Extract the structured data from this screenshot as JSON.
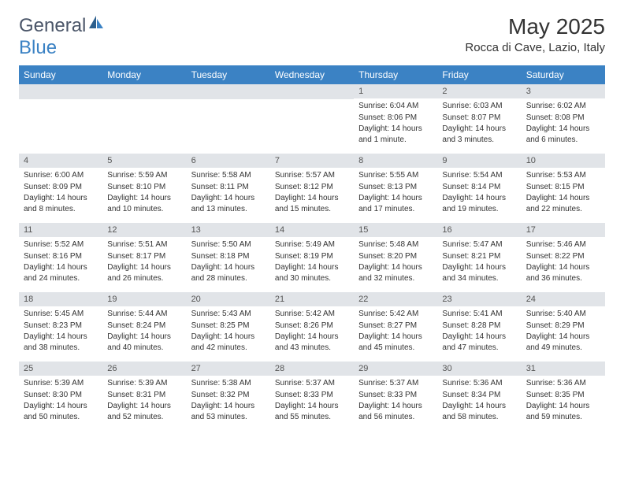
{
  "logo": {
    "text_general": "General",
    "text_blue": "Blue"
  },
  "header": {
    "month_title": "May 2025",
    "location": "Rocca di Cave, Lazio, Italy"
  },
  "calendar": {
    "day_headers": [
      "Sunday",
      "Monday",
      "Tuesday",
      "Wednesday",
      "Thursday",
      "Friday",
      "Saturday"
    ],
    "header_bg_color": "#3b82c4",
    "header_text_color": "#ffffff",
    "day_number_bg_color": "#e1e4e8",
    "weeks": [
      [
        {
          "empty": true
        },
        {
          "empty": true
        },
        {
          "empty": true
        },
        {
          "empty": true
        },
        {
          "day": "1",
          "sunrise": "Sunrise: 6:04 AM",
          "sunset": "Sunset: 8:06 PM",
          "daylight": "Daylight: 14 hours and 1 minute."
        },
        {
          "day": "2",
          "sunrise": "Sunrise: 6:03 AM",
          "sunset": "Sunset: 8:07 PM",
          "daylight": "Daylight: 14 hours and 3 minutes."
        },
        {
          "day": "3",
          "sunrise": "Sunrise: 6:02 AM",
          "sunset": "Sunset: 8:08 PM",
          "daylight": "Daylight: 14 hours and 6 minutes."
        }
      ],
      [
        {
          "day": "4",
          "sunrise": "Sunrise: 6:00 AM",
          "sunset": "Sunset: 8:09 PM",
          "daylight": "Daylight: 14 hours and 8 minutes."
        },
        {
          "day": "5",
          "sunrise": "Sunrise: 5:59 AM",
          "sunset": "Sunset: 8:10 PM",
          "daylight": "Daylight: 14 hours and 10 minutes."
        },
        {
          "day": "6",
          "sunrise": "Sunrise: 5:58 AM",
          "sunset": "Sunset: 8:11 PM",
          "daylight": "Daylight: 14 hours and 13 minutes."
        },
        {
          "day": "7",
          "sunrise": "Sunrise: 5:57 AM",
          "sunset": "Sunset: 8:12 PM",
          "daylight": "Daylight: 14 hours and 15 minutes."
        },
        {
          "day": "8",
          "sunrise": "Sunrise: 5:55 AM",
          "sunset": "Sunset: 8:13 PM",
          "daylight": "Daylight: 14 hours and 17 minutes."
        },
        {
          "day": "9",
          "sunrise": "Sunrise: 5:54 AM",
          "sunset": "Sunset: 8:14 PM",
          "daylight": "Daylight: 14 hours and 19 minutes."
        },
        {
          "day": "10",
          "sunrise": "Sunrise: 5:53 AM",
          "sunset": "Sunset: 8:15 PM",
          "daylight": "Daylight: 14 hours and 22 minutes."
        }
      ],
      [
        {
          "day": "11",
          "sunrise": "Sunrise: 5:52 AM",
          "sunset": "Sunset: 8:16 PM",
          "daylight": "Daylight: 14 hours and 24 minutes."
        },
        {
          "day": "12",
          "sunrise": "Sunrise: 5:51 AM",
          "sunset": "Sunset: 8:17 PM",
          "daylight": "Daylight: 14 hours and 26 minutes."
        },
        {
          "day": "13",
          "sunrise": "Sunrise: 5:50 AM",
          "sunset": "Sunset: 8:18 PM",
          "daylight": "Daylight: 14 hours and 28 minutes."
        },
        {
          "day": "14",
          "sunrise": "Sunrise: 5:49 AM",
          "sunset": "Sunset: 8:19 PM",
          "daylight": "Daylight: 14 hours and 30 minutes."
        },
        {
          "day": "15",
          "sunrise": "Sunrise: 5:48 AM",
          "sunset": "Sunset: 8:20 PM",
          "daylight": "Daylight: 14 hours and 32 minutes."
        },
        {
          "day": "16",
          "sunrise": "Sunrise: 5:47 AM",
          "sunset": "Sunset: 8:21 PM",
          "daylight": "Daylight: 14 hours and 34 minutes."
        },
        {
          "day": "17",
          "sunrise": "Sunrise: 5:46 AM",
          "sunset": "Sunset: 8:22 PM",
          "daylight": "Daylight: 14 hours and 36 minutes."
        }
      ],
      [
        {
          "day": "18",
          "sunrise": "Sunrise: 5:45 AM",
          "sunset": "Sunset: 8:23 PM",
          "daylight": "Daylight: 14 hours and 38 minutes."
        },
        {
          "day": "19",
          "sunrise": "Sunrise: 5:44 AM",
          "sunset": "Sunset: 8:24 PM",
          "daylight": "Daylight: 14 hours and 40 minutes."
        },
        {
          "day": "20",
          "sunrise": "Sunrise: 5:43 AM",
          "sunset": "Sunset: 8:25 PM",
          "daylight": "Daylight: 14 hours and 42 minutes."
        },
        {
          "day": "21",
          "sunrise": "Sunrise: 5:42 AM",
          "sunset": "Sunset: 8:26 PM",
          "daylight": "Daylight: 14 hours and 43 minutes."
        },
        {
          "day": "22",
          "sunrise": "Sunrise: 5:42 AM",
          "sunset": "Sunset: 8:27 PM",
          "daylight": "Daylight: 14 hours and 45 minutes."
        },
        {
          "day": "23",
          "sunrise": "Sunrise: 5:41 AM",
          "sunset": "Sunset: 8:28 PM",
          "daylight": "Daylight: 14 hours and 47 minutes."
        },
        {
          "day": "24",
          "sunrise": "Sunrise: 5:40 AM",
          "sunset": "Sunset: 8:29 PM",
          "daylight": "Daylight: 14 hours and 49 minutes."
        }
      ],
      [
        {
          "day": "25",
          "sunrise": "Sunrise: 5:39 AM",
          "sunset": "Sunset: 8:30 PM",
          "daylight": "Daylight: 14 hours and 50 minutes."
        },
        {
          "day": "26",
          "sunrise": "Sunrise: 5:39 AM",
          "sunset": "Sunset: 8:31 PM",
          "daylight": "Daylight: 14 hours and 52 minutes."
        },
        {
          "day": "27",
          "sunrise": "Sunrise: 5:38 AM",
          "sunset": "Sunset: 8:32 PM",
          "daylight": "Daylight: 14 hours and 53 minutes."
        },
        {
          "day": "28",
          "sunrise": "Sunrise: 5:37 AM",
          "sunset": "Sunset: 8:33 PM",
          "daylight": "Daylight: 14 hours and 55 minutes."
        },
        {
          "day": "29",
          "sunrise": "Sunrise: 5:37 AM",
          "sunset": "Sunset: 8:33 PM",
          "daylight": "Daylight: 14 hours and 56 minutes."
        },
        {
          "day": "30",
          "sunrise": "Sunrise: 5:36 AM",
          "sunset": "Sunset: 8:34 PM",
          "daylight": "Daylight: 14 hours and 58 minutes."
        },
        {
          "day": "31",
          "sunrise": "Sunrise: 5:36 AM",
          "sunset": "Sunset: 8:35 PM",
          "daylight": "Daylight: 14 hours and 59 minutes."
        }
      ]
    ]
  }
}
